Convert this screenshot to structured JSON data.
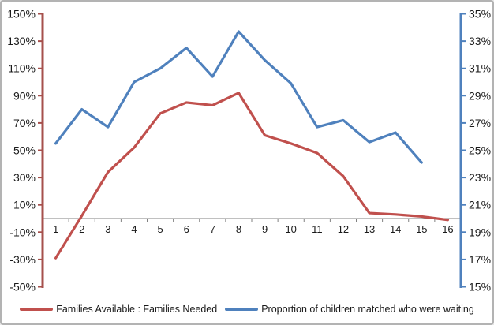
{
  "chart_data": {
    "type": "line",
    "title": "",
    "xlabel": "",
    "ylabel_left": "",
    "ylabel_right": "",
    "grid": false,
    "legend_position": "bottom",
    "categories": [
      "1",
      "2",
      "3",
      "4",
      "5",
      "6",
      "7",
      "8",
      "9",
      "10",
      "11",
      "12",
      "13",
      "14",
      "15",
      "16"
    ],
    "left_axis": {
      "min": -50,
      "max": 150,
      "step": 20,
      "tick_labels": [
        "150%",
        "130%",
        "110%",
        "90%",
        "70%",
        "50%",
        "30%",
        "10%",
        "-10%",
        "-30%",
        "-50%"
      ],
      "color": "#A6504C"
    },
    "right_axis": {
      "min": 15,
      "max": 35,
      "step": 2,
      "tick_labels": [
        "35%",
        "33%",
        "31%",
        "29%",
        "27%",
        "25%",
        "23%",
        "21%",
        "19%",
        "17%",
        "15%"
      ],
      "color": "#4F81BD"
    },
    "x_axis": {
      "color": "#808080"
    },
    "text_color": "#1a1a1a",
    "series": [
      {
        "name": "Families Available : Families Needed",
        "axis": "left",
        "color": "#C0504D",
        "values": [
          -29,
          2,
          34,
          52,
          77,
          85,
          83,
          92,
          61,
          55,
          48,
          31,
          4,
          3,
          1.5,
          -1
        ]
      },
      {
        "name": "Proportion of children matched who were waiting",
        "axis": "right",
        "color": "#4F81BD",
        "values": [
          25.5,
          28,
          26.7,
          30,
          31,
          32.5,
          30.4,
          33.7,
          31.6,
          29.9,
          26.7,
          27.2,
          25.6,
          26.3,
          24.1
        ]
      }
    ]
  }
}
